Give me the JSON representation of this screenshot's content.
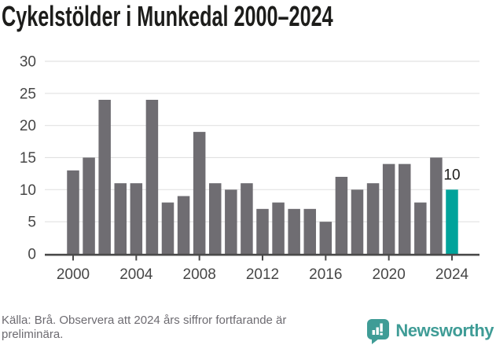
{
  "title": "Cykelstölder i Munkedal 2000–2024",
  "chart_data": {
    "type": "bar",
    "title": "Cykelstölder i Munkedal 2000–2024",
    "x": [
      2000,
      2001,
      2002,
      2003,
      2004,
      2005,
      2006,
      2007,
      2008,
      2009,
      2010,
      2011,
      2012,
      2013,
      2014,
      2015,
      2016,
      2017,
      2018,
      2019,
      2020,
      2021,
      2022,
      2023,
      2024
    ],
    "values": [
      13,
      15,
      24,
      11,
      11,
      24,
      8,
      9,
      19,
      11,
      10,
      11,
      7,
      8,
      7,
      7,
      5,
      12,
      10,
      11,
      14,
      14,
      8,
      15,
      10
    ],
    "xlabel": "",
    "ylabel": "",
    "ylim": [
      0,
      30
    ],
    "yticks": [
      0,
      5,
      10,
      15,
      20,
      25,
      30
    ],
    "xticks": [
      2000,
      2004,
      2008,
      2012,
      2016,
      2020,
      2024
    ],
    "grid": true,
    "legend": "none",
    "bar_color": "#6f6d72",
    "highlight_index": 24,
    "highlight_color": "#00a39b",
    "highlight_label": "10",
    "gridline_color": "#e2e2e2",
    "axis_color": "#4a4a4a"
  },
  "footer": {
    "source_note": "Källa: Brå. Observera att 2024 års siffror fortfarande är preliminära.",
    "brand": "Newsworthy",
    "brand_color": "#3f9c96"
  }
}
